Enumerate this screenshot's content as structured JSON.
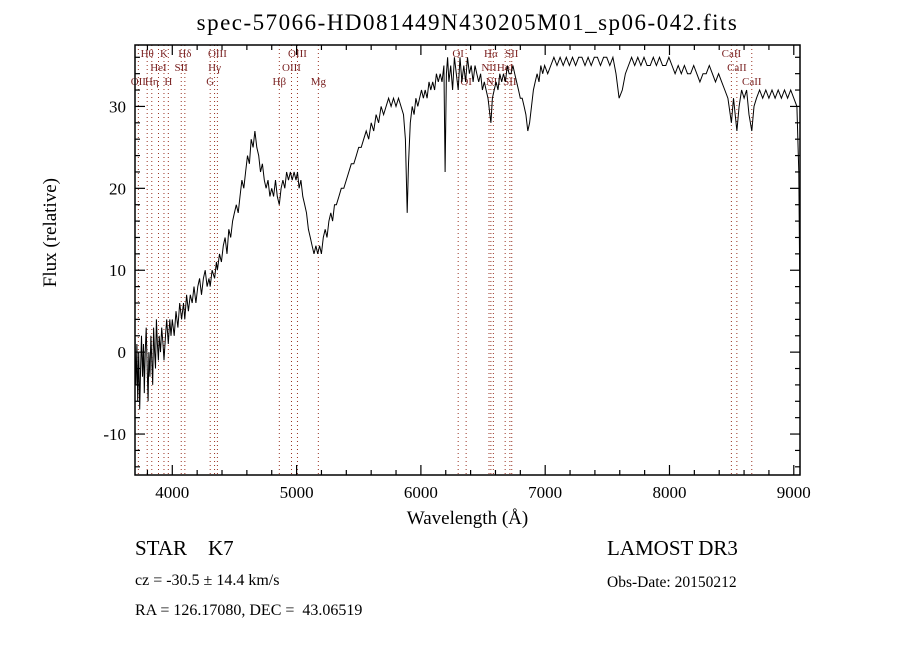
{
  "title": "spec-57066-HD081449N430205M01_sp06-042.fits",
  "footer": {
    "class_label": "STAR    K7",
    "survey": "LAMOST DR3",
    "cz": "cz = -30.5 ± 14.4 km/s",
    "obs_date": "Obs-Date: 20150212",
    "radec": "RA = 126.17080, DEC =  43.06519"
  },
  "chart_data": {
    "type": "line",
    "title": "spec-57066-HD081449N430205M01_sp06-042.fits",
    "xlabel": "Wavelength (Å)",
    "ylabel": "Flux (relative)",
    "xlim": [
      3700,
      9050
    ],
    "ylim": [
      -15,
      37.5
    ],
    "x_major_ticks": [
      4000,
      5000,
      6000,
      7000,
      8000,
      9000
    ],
    "x_minor_step": 200,
    "y_major_ticks": [
      -10,
      0,
      10,
      20,
      30
    ],
    "y_minor_step": 2,
    "grid": false,
    "legend": "none",
    "line_color": "#000000",
    "marker_color": "#993322",
    "marker_label_color": "#7a2222",
    "spectral_lines": [
      {
        "label": "OII",
        "wavelength": 3727,
        "row": 3
      },
      {
        "label": "Hθ",
        "wavelength": 3798,
        "row": 1
      },
      {
        "label": "Hη",
        "wavelength": 3835,
        "row": 3
      },
      {
        "label": "HeI",
        "wavelength": 3889,
        "row": 2
      },
      {
        "label": "K",
        "wavelength": 3933,
        "row": 1
      },
      {
        "label": "H",
        "wavelength": 3968,
        "row": 3
      },
      {
        "label": "SII",
        "wavelength": 4072,
        "row": 2
      },
      {
        "label": "Hδ",
        "wavelength": 4101,
        "row": 1
      },
      {
        "label": "G",
        "wavelength": 4305,
        "row": 3
      },
      {
        "label": "Hγ",
        "wavelength": 4340,
        "row": 2
      },
      {
        "label": "OIII",
        "wavelength": 4363,
        "row": 1
      },
      {
        "label": "Hβ",
        "wavelength": 4861,
        "row": 3
      },
      {
        "label": "OIII",
        "wavelength": 4959,
        "row": 2
      },
      {
        "label": "OIII",
        "wavelength": 5007,
        "row": 1
      },
      {
        "label": "Mg",
        "wavelength": 5175,
        "row": 3
      },
      {
        "label": "OI",
        "wavelength": 6300,
        "row": 1
      },
      {
        "label": "OI",
        "wavelength": 6364,
        "row": 3
      },
      {
        "label": "NII",
        "wavelength": 6548,
        "row": 2
      },
      {
        "label": "Hα",
        "wavelength": 6563,
        "row": 1
      },
      {
        "label": "NII",
        "wavelength": 6583,
        "row": 3
      },
      {
        "label": "HeI",
        "wavelength": 6678,
        "row": 2
      },
      {
        "label": "SII",
        "wavelength": 6716,
        "row": 3
      },
      {
        "label": "SII",
        "wavelength": 6731,
        "row": 1
      },
      {
        "label": "CaII",
        "wavelength": 8498,
        "row": 1
      },
      {
        "label": "CaII",
        "wavelength": 8542,
        "row": 2
      },
      {
        "label": "CaII",
        "wavelength": 8662,
        "row": 3
      }
    ],
    "spectrum": [
      [
        3700,
        2
      ],
      [
        3708,
        -4
      ],
      [
        3715,
        1
      ],
      [
        3722,
        -6
      ],
      [
        3730,
        0
      ],
      [
        3738,
        -7
      ],
      [
        3745,
        -2
      ],
      [
        3752,
        2
      ],
      [
        3760,
        -3
      ],
      [
        3768,
        1
      ],
      [
        3775,
        -5
      ],
      [
        3782,
        0
      ],
      [
        3790,
        3
      ],
      [
        3798,
        -2
      ],
      [
        3805,
        -6
      ],
      [
        3812,
        0
      ],
      [
        3820,
        -3
      ],
      [
        3828,
        2
      ],
      [
        3835,
        -1
      ],
      [
        3842,
        -4
      ],
      [
        3850,
        3
      ],
      [
        3858,
        0
      ],
      [
        3865,
        -2
      ],
      [
        3872,
        4
      ],
      [
        3880,
        1
      ],
      [
        3888,
        -1
      ],
      [
        3895,
        2
      ],
      [
        3905,
        0
      ],
      [
        3915,
        3
      ],
      [
        3925,
        1
      ],
      [
        3933,
        -1
      ],
      [
        3945,
        2
      ],
      [
        3955,
        4
      ],
      [
        3968,
        1
      ],
      [
        3980,
        4
      ],
      [
        3990,
        2
      ],
      [
        4000,
        4
      ],
      [
        4015,
        2
      ],
      [
        4030,
        5
      ],
      [
        4045,
        3
      ],
      [
        4060,
        6
      ],
      [
        4075,
        4
      ],
      [
        4090,
        6
      ],
      [
        4101,
        4
      ],
      [
        4115,
        7
      ],
      [
        4130,
        5
      ],
      [
        4145,
        7
      ],
      [
        4160,
        6
      ],
      [
        4175,
        8
      ],
      [
        4190,
        6
      ],
      [
        4205,
        8
      ],
      [
        4220,
        9
      ],
      [
        4235,
        7
      ],
      [
        4250,
        9
      ],
      [
        4265,
        10
      ],
      [
        4280,
        8
      ],
      [
        4295,
        9
      ],
      [
        4305,
        8
      ],
      [
        4320,
        10
      ],
      [
        4340,
        9
      ],
      [
        4355,
        11
      ],
      [
        4363,
        10
      ],
      [
        4380,
        12
      ],
      [
        4395,
        11
      ],
      [
        4410,
        13
      ],
      [
        4425,
        14
      ],
      [
        4440,
        12
      ],
      [
        4455,
        15
      ],
      [
        4470,
        14
      ],
      [
        4485,
        16
      ],
      [
        4500,
        17
      ],
      [
        4515,
        18
      ],
      [
        4530,
        17
      ],
      [
        4545,
        19
      ],
      [
        4560,
        21
      ],
      [
        4575,
        20
      ],
      [
        4590,
        22
      ],
      [
        4605,
        24
      ],
      [
        4620,
        23
      ],
      [
        4635,
        26
      ],
      [
        4650,
        25
      ],
      [
        4665,
        27
      ],
      [
        4680,
        25
      ],
      [
        4695,
        24
      ],
      [
        4710,
        22
      ],
      [
        4725,
        23
      ],
      [
        4740,
        21
      ],
      [
        4755,
        20
      ],
      [
        4770,
        21
      ],
      [
        4785,
        19
      ],
      [
        4800,
        20
      ],
      [
        4815,
        19
      ],
      [
        4830,
        21
      ],
      [
        4845,
        19
      ],
      [
        4861,
        18
      ],
      [
        4875,
        20
      ],
      [
        4890,
        21
      ],
      [
        4905,
        20
      ],
      [
        4920,
        22
      ],
      [
        4935,
        21
      ],
      [
        4950,
        22
      ],
      [
        4965,
        21
      ],
      [
        4980,
        22
      ],
      [
        4995,
        21
      ],
      [
        5007,
        22
      ],
      [
        5020,
        20
      ],
      [
        5035,
        21
      ],
      [
        5050,
        19
      ],
      [
        5065,
        18
      ],
      [
        5080,
        17
      ],
      [
        5095,
        15
      ],
      [
        5110,
        14
      ],
      [
        5125,
        13
      ],
      [
        5140,
        12
      ],
      [
        5155,
        13
      ],
      [
        5170,
        12
      ],
      [
        5185,
        13
      ],
      [
        5200,
        12
      ],
      [
        5215,
        14
      ],
      [
        5230,
        15
      ],
      [
        5245,
        14
      ],
      [
        5260,
        16
      ],
      [
        5275,
        17
      ],
      [
        5290,
        16
      ],
      [
        5305,
        18
      ],
      [
        5320,
        18
      ],
      [
        5340,
        19
      ],
      [
        5360,
        20
      ],
      [
        5380,
        20
      ],
      [
        5400,
        21
      ],
      [
        5420,
        22
      ],
      [
        5440,
        23
      ],
      [
        5460,
        23
      ],
      [
        5480,
        24
      ],
      [
        5500,
        25
      ],
      [
        5520,
        25
      ],
      [
        5540,
        26
      ],
      [
        5560,
        27
      ],
      [
        5580,
        26
      ],
      [
        5600,
        28
      ],
      [
        5620,
        27
      ],
      [
        5640,
        29
      ],
      [
        5660,
        28
      ],
      [
        5680,
        30
      ],
      [
        5700,
        29
      ],
      [
        5720,
        30
      ],
      [
        5740,
        31
      ],
      [
        5760,
        30
      ],
      [
        5780,
        31
      ],
      [
        5800,
        30
      ],
      [
        5820,
        31
      ],
      [
        5840,
        30
      ],
      [
        5860,
        29
      ],
      [
        5875,
        26
      ],
      [
        5890,
        17
      ],
      [
        5900,
        23
      ],
      [
        5915,
        28
      ],
      [
        5930,
        30
      ],
      [
        5945,
        29
      ],
      [
        5960,
        31
      ],
      [
        5975,
        30
      ],
      [
        5990,
        31
      ],
      [
        6005,
        32
      ],
      [
        6020,
        31
      ],
      [
        6035,
        32
      ],
      [
        6050,
        31
      ],
      [
        6065,
        33
      ],
      [
        6080,
        32
      ],
      [
        6095,
        33
      ],
      [
        6110,
        32
      ],
      [
        6125,
        34
      ],
      [
        6140,
        33
      ],
      [
        6155,
        34
      ],
      [
        6170,
        33
      ],
      [
        6185,
        35
      ],
      [
        6195,
        22
      ],
      [
        6205,
        34
      ],
      [
        6215,
        36
      ],
      [
        6225,
        33
      ],
      [
        6240,
        35
      ],
      [
        6255,
        32
      ],
      [
        6270,
        36
      ],
      [
        6285,
        34
      ],
      [
        6300,
        32
      ],
      [
        6315,
        36
      ],
      [
        6330,
        33
      ],
      [
        6345,
        35
      ],
      [
        6360,
        33
      ],
      [
        6375,
        36
      ],
      [
        6390,
        34
      ],
      [
        6405,
        35
      ],
      [
        6420,
        33
      ],
      [
        6435,
        35
      ],
      [
        6450,
        34
      ],
      [
        6465,
        33
      ],
      [
        6480,
        34
      ],
      [
        6495,
        32
      ],
      [
        6510,
        33
      ],
      [
        6525,
        32
      ],
      [
        6540,
        31
      ],
      [
        6555,
        29
      ],
      [
        6563,
        28
      ],
      [
        6575,
        31
      ],
      [
        6590,
        32
      ],
      [
        6605,
        33
      ],
      [
        6620,
        32
      ],
      [
        6635,
        34
      ],
      [
        6650,
        33
      ],
      [
        6665,
        34
      ],
      [
        6680,
        33
      ],
      [
        6695,
        35
      ],
      [
        6710,
        34
      ],
      [
        6725,
        34
      ],
      [
        6740,
        35
      ],
      [
        6755,
        34
      ],
      [
        6770,
        33
      ],
      [
        6785,
        32
      ],
      [
        6800,
        31
      ],
      [
        6815,
        31
      ],
      [
        6830,
        30
      ],
      [
        6845,
        29
      ],
      [
        6860,
        27
      ],
      [
        6875,
        28
      ],
      [
        6890,
        30
      ],
      [
        6905,
        32
      ],
      [
        6920,
        33
      ],
      [
        6935,
        34
      ],
      [
        6950,
        33
      ],
      [
        6965,
        35
      ],
      [
        6980,
        34
      ],
      [
        6995,
        35
      ],
      [
        7020,
        34
      ],
      [
        7045,
        35
      ],
      [
        7070,
        36
      ],
      [
        7095,
        35
      ],
      [
        7120,
        36
      ],
      [
        7145,
        35
      ],
      [
        7170,
        36
      ],
      [
        7195,
        35
      ],
      [
        7220,
        36
      ],
      [
        7245,
        35
      ],
      [
        7270,
        36
      ],
      [
        7295,
        36
      ],
      [
        7320,
        35
      ],
      [
        7345,
        36
      ],
      [
        7370,
        35
      ],
      [
        7395,
        36
      ],
      [
        7420,
        36
      ],
      [
        7445,
        35
      ],
      [
        7470,
        36
      ],
      [
        7495,
        36
      ],
      [
        7520,
        35
      ],
      [
        7545,
        36
      ],
      [
        7570,
        34
      ],
      [
        7595,
        31
      ],
      [
        7620,
        32
      ],
      [
        7645,
        34
      ],
      [
        7670,
        35
      ],
      [
        7695,
        36
      ],
      [
        7720,
        35
      ],
      [
        7745,
        36
      ],
      [
        7770,
        35
      ],
      [
        7795,
        36
      ],
      [
        7820,
        35
      ],
      [
        7845,
        35
      ],
      [
        7870,
        36
      ],
      [
        7895,
        35
      ],
      [
        7920,
        36
      ],
      [
        7945,
        35
      ],
      [
        7970,
        35
      ],
      [
        7995,
        36
      ],
      [
        8020,
        35
      ],
      [
        8045,
        34
      ],
      [
        8070,
        35
      ],
      [
        8095,
        34
      ],
      [
        8120,
        35
      ],
      [
        8145,
        34
      ],
      [
        8170,
        34
      ],
      [
        8195,
        35
      ],
      [
        8220,
        34
      ],
      [
        8245,
        33
      ],
      [
        8270,
        34
      ],
      [
        8295,
        34
      ],
      [
        8320,
        35
      ],
      [
        8345,
        34
      ],
      [
        8370,
        33
      ],
      [
        8395,
        34
      ],
      [
        8420,
        33
      ],
      [
        8445,
        32
      ],
      [
        8470,
        31
      ],
      [
        8498,
        28
      ],
      [
        8515,
        31
      ],
      [
        8542,
        27
      ],
      [
        8560,
        30
      ],
      [
        8580,
        32
      ],
      [
        8600,
        31
      ],
      [
        8620,
        32
      ],
      [
        8640,
        29
      ],
      [
        8662,
        27
      ],
      [
        8680,
        30
      ],
      [
        8700,
        31
      ],
      [
        8725,
        32
      ],
      [
        8750,
        31
      ],
      [
        8775,
        32
      ],
      [
        8800,
        31
      ],
      [
        8825,
        32
      ],
      [
        8850,
        31
      ],
      [
        8875,
        32
      ],
      [
        8900,
        31
      ],
      [
        8925,
        32
      ],
      [
        8950,
        31
      ],
      [
        8975,
        32
      ],
      [
        9000,
        31
      ],
      [
        9025,
        30
      ],
      [
        9040,
        22
      ],
      [
        9050,
        5
      ]
    ]
  }
}
